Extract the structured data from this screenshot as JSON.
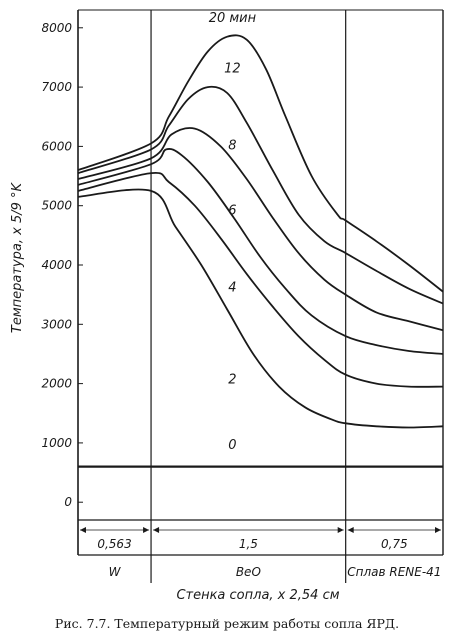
{
  "chart_data": {
    "type": "line",
    "caption": "Рис. 7.7. Температурный режим работы сопла ЯРД.",
    "ylabel": "Температура, x 5/9 °K",
    "xlabel": "Стенка сопла, x 2,54 см",
    "ylim": [
      -300,
      8300
    ],
    "yticks": [
      0,
      1000,
      2000,
      3000,
      4000,
      5000,
      6000,
      7000,
      8000
    ],
    "xlim": [
      0,
      2.813
    ],
    "segments": [
      {
        "material": "W",
        "thickness": "0,563",
        "start": 0,
        "end": 0.563
      },
      {
        "material": "BeO",
        "thickness": "1,5",
        "start": 0.563,
        "end": 2.063
      },
      {
        "material": "Сплав RENE-41",
        "thickness": "0,75",
        "start": 2.063,
        "end": 2.813
      }
    ],
    "series": [
      {
        "name": "0",
        "label_pos": [
          1.19,
          900
        ],
        "x": [
          0,
          2.813
        ],
        "y": [
          600,
          600
        ]
      },
      {
        "name": "2",
        "label_pos": [
          1.19,
          2000
        ],
        "x": [
          0,
          0.563,
          0.75,
          0.95,
          1.15,
          1.35,
          1.55,
          1.75,
          1.95,
          2.063,
          2.3,
          2.55,
          2.813
        ],
        "y": [
          5150,
          5250,
          4650,
          4000,
          3250,
          2500,
          1950,
          1600,
          1400,
          1330,
          1280,
          1260,
          1280
        ]
      },
      {
        "name": "4",
        "label_pos": [
          1.19,
          3550
        ],
        "x": [
          0,
          0.563,
          0.7,
          0.9,
          1.1,
          1.3,
          1.5,
          1.7,
          1.9,
          2.063,
          2.3,
          2.55,
          2.813
        ],
        "y": [
          5250,
          5550,
          5400,
          5000,
          4450,
          3850,
          3300,
          2800,
          2400,
          2150,
          2000,
          1950,
          1950
        ]
      },
      {
        "name": "6",
        "label_pos": [
          1.19,
          4850
        ],
        "x": [
          0,
          0.563,
          0.68,
          0.8,
          1.0,
          1.2,
          1.4,
          1.6,
          1.8,
          2.063,
          2.3,
          2.55,
          2.813
        ],
        "y": [
          5350,
          5700,
          5950,
          5850,
          5400,
          4800,
          4150,
          3600,
          3150,
          2800,
          2650,
          2550,
          2500
        ]
      },
      {
        "name": "8",
        "label_pos": [
          1.19,
          5950
        ],
        "x": [
          0,
          0.563,
          0.72,
          0.9,
          1.1,
          1.3,
          1.5,
          1.7,
          1.9,
          2.063,
          2.3,
          2.55,
          2.813
        ],
        "y": [
          5450,
          5800,
          6200,
          6300,
          6000,
          5450,
          4800,
          4200,
          3750,
          3500,
          3200,
          3050,
          2900
        ]
      },
      {
        "name": "12",
        "label_pos": [
          1.19,
          7250
        ],
        "x": [
          0,
          0.563,
          0.7,
          0.85,
          1.0,
          1.15,
          1.3,
          1.5,
          1.7,
          1.9,
          2.063,
          2.3,
          2.55,
          2.813
        ],
        "y": [
          5550,
          5950,
          6350,
          6800,
          7000,
          6900,
          6400,
          5600,
          4850,
          4400,
          4200,
          3900,
          3600,
          3350
        ]
      },
      {
        "name": "20 мин",
        "label_pos": [
          1.19,
          8100
        ],
        "x": [
          0,
          0.563,
          0.7,
          0.85,
          1.0,
          1.15,
          1.3,
          1.45,
          1.6,
          1.8,
          2.0,
          2.063,
          2.3,
          2.55,
          2.813
        ],
        "y": [
          5600,
          6050,
          6500,
          7100,
          7600,
          7850,
          7800,
          7300,
          6500,
          5500,
          4850,
          4750,
          4400,
          4000,
          3550
        ]
      }
    ]
  }
}
